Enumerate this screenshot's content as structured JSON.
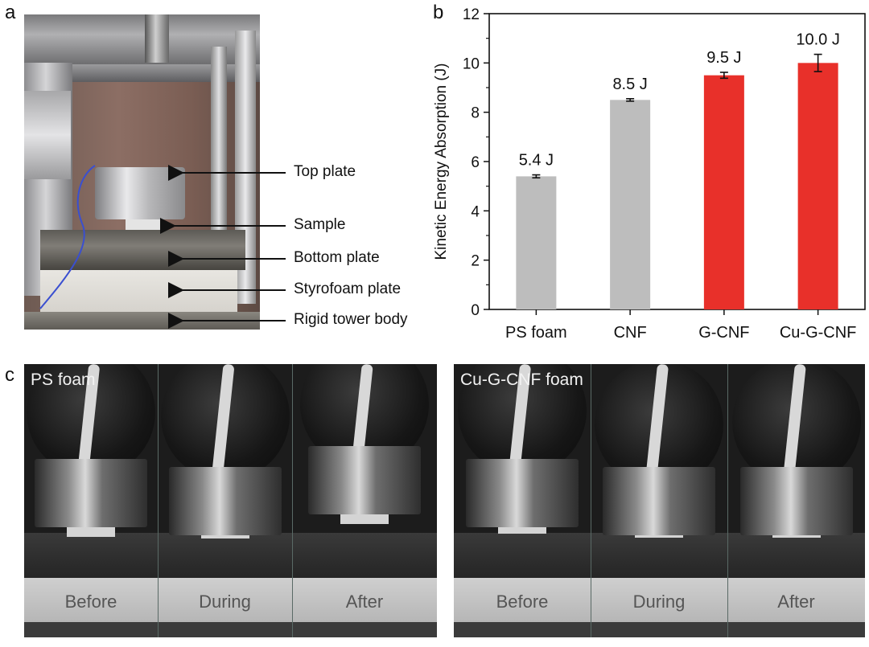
{
  "panels": {
    "a": "a",
    "b": "b",
    "c": "c"
  },
  "photo_a": {
    "callouts": [
      "Top plate",
      "Sample",
      "Bottom plate",
      "Styrofoam plate",
      "Rigid tower body"
    ]
  },
  "chart_data": {
    "type": "bar",
    "categories": [
      "PS foam",
      "CNF",
      "G-CNF",
      "Cu-G-CNF"
    ],
    "values": [
      5.4,
      8.5,
      9.5,
      10.0
    ],
    "errors": [
      0.06,
      0.05,
      0.12,
      0.35
    ],
    "data_labels": [
      "5.4 J",
      "8.5 J",
      "9.5 J",
      "10.0 J"
    ],
    "bar_colors": [
      "#bdbdbd",
      "#bdbdbd",
      "#e8302a",
      "#e8302a"
    ],
    "ylabel": "Kinetic Energy Absorption (J)",
    "xlabel": "",
    "title": "",
    "ylim": [
      0,
      12
    ],
    "yticks": [
      0,
      2,
      4,
      6,
      8,
      10,
      12
    ],
    "grid": false
  },
  "panel_c": {
    "left": {
      "title": "PS foam",
      "frames": [
        "Before",
        "During",
        "After"
      ]
    },
    "right": {
      "title": "Cu-G-CNF foam",
      "frames": [
        "Before",
        "During",
        "After"
      ]
    }
  }
}
